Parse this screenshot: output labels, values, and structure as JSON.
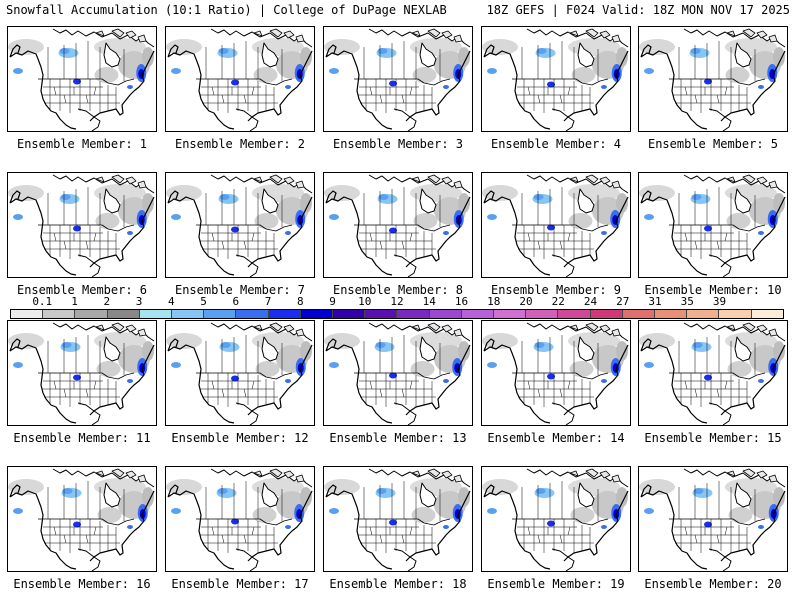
{
  "header": {
    "left": "Snowfall Accumulation (10:1 Ratio) | College of DuPage NEXLAB",
    "right": "18Z GEFS | F024 Valid: 18Z MON NOV 17 2025"
  },
  "colorbar": {
    "labels": [
      "0.1",
      "1",
      "2",
      "3",
      "4",
      "5",
      "6",
      "7",
      "8",
      "9",
      "10",
      "12",
      "14",
      "16",
      "18",
      "20",
      "22",
      "24",
      "27",
      "31",
      "35",
      "39"
    ],
    "colors": [
      "#ececec",
      "#c8c8c8",
      "#a8a8a8",
      "#888888",
      "#a6e4f2",
      "#86c6f6",
      "#5aa0f2",
      "#3a6ef0",
      "#1a2ef0",
      "#0000d0",
      "#3200a8",
      "#5a10b0",
      "#7a28c0",
      "#9a48d0",
      "#b860d8",
      "#d070d0",
      "#d060b8",
      "#d04898",
      "#d03878",
      "#e07070",
      "#e89078",
      "#f0b090",
      "#f8d0b0",
      "#fcecd8"
    ]
  },
  "panels": [
    {
      "label": "Ensemble Member: 1"
    },
    {
      "label": "Ensemble Member: 2"
    },
    {
      "label": "Ensemble Member: 3"
    },
    {
      "label": "Ensemble Member: 4"
    },
    {
      "label": "Ensemble Member: 5"
    },
    {
      "label": "Ensemble Member: 6"
    },
    {
      "label": "Ensemble Member: 7"
    },
    {
      "label": "Ensemble Member: 8"
    },
    {
      "label": "Ensemble Member: 9"
    },
    {
      "label": "Ensemble Member: 10"
    },
    {
      "label": "Ensemble Member: 11"
    },
    {
      "label": "Ensemble Member: 12"
    },
    {
      "label": "Ensemble Member: 13"
    },
    {
      "label": "Ensemble Member: 14"
    },
    {
      "label": "Ensemble Member: 15"
    },
    {
      "label": "Ensemble Member: 16"
    },
    {
      "label": "Ensemble Member: 17"
    },
    {
      "label": "Ensemble Member: 18"
    },
    {
      "label": "Ensemble Member: 19"
    },
    {
      "label": "Ensemble Member: 20"
    }
  ]
}
